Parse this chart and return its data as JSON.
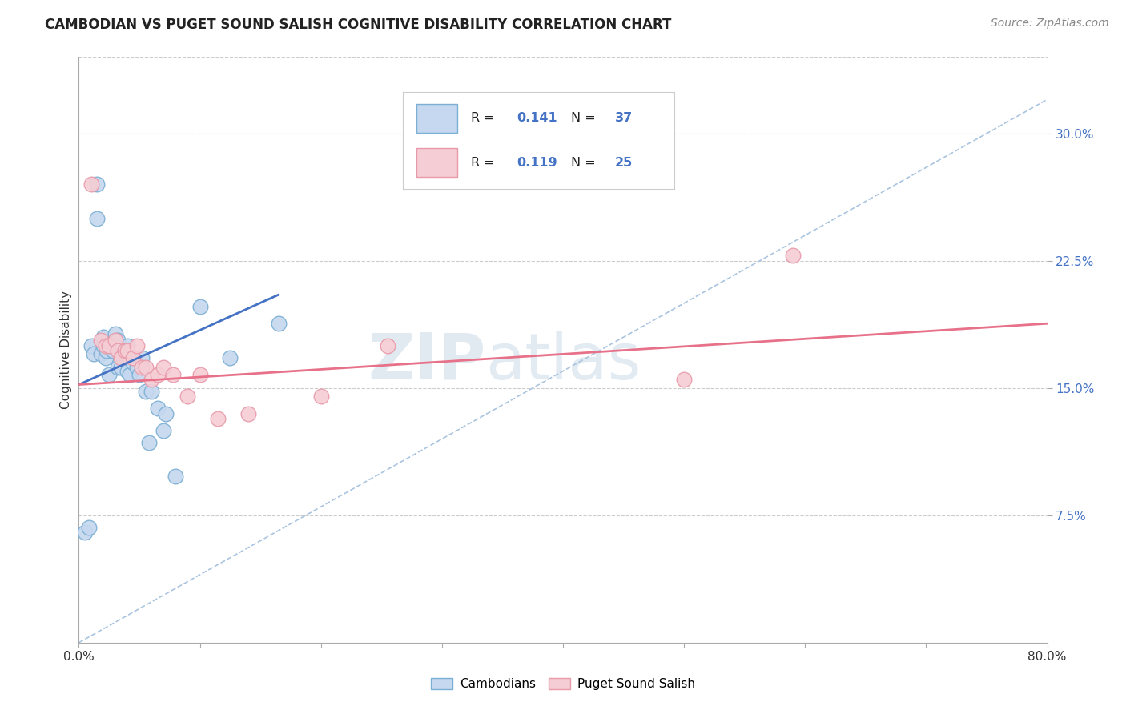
{
  "title": "CAMBODIAN VS PUGET SOUND SALISH COGNITIVE DISABILITY CORRELATION CHART",
  "source": "Source: ZipAtlas.com",
  "ylabel": "Cognitive Disability",
  "xlim": [
    0.0,
    0.8
  ],
  "ylim": [
    0.0,
    0.345
  ],
  "xticks": [
    0.0,
    0.1,
    0.2,
    0.3,
    0.4,
    0.5,
    0.6,
    0.7,
    0.8
  ],
  "yticks": [
    0.075,
    0.15,
    0.225,
    0.3
  ],
  "grid_color": "#cccccc",
  "background_color": "#ffffff",
  "watermark_zip": "ZIP",
  "watermark_atlas": "atlas",
  "cambodian_color": "#c5d8ef",
  "cambodian_edge": "#7bafd4",
  "salish_color": "#f5cdd4",
  "salish_edge": "#e89aaa",
  "cambodian_x": [
    0.005,
    0.008,
    0.01,
    0.012,
    0.015,
    0.015,
    0.018,
    0.02,
    0.02,
    0.022,
    0.023,
    0.025,
    0.025,
    0.028,
    0.03,
    0.03,
    0.032,
    0.032,
    0.035,
    0.038,
    0.04,
    0.04,
    0.042,
    0.045,
    0.048,
    0.05,
    0.052,
    0.055,
    0.058,
    0.06,
    0.065,
    0.07,
    0.072,
    0.08,
    0.1,
    0.125,
    0.165
  ],
  "cambodian_y": [
    0.065,
    0.068,
    0.175,
    0.17,
    0.25,
    0.27,
    0.17,
    0.175,
    0.18,
    0.168,
    0.172,
    0.158,
    0.175,
    0.172,
    0.175,
    0.182,
    0.162,
    0.178,
    0.162,
    0.172,
    0.16,
    0.175,
    0.158,
    0.165,
    0.162,
    0.158,
    0.168,
    0.148,
    0.118,
    0.148,
    0.138,
    0.125,
    0.135,
    0.098,
    0.198,
    0.168,
    0.188
  ],
  "salish_x": [
    0.01,
    0.018,
    0.022,
    0.025,
    0.03,
    0.032,
    0.035,
    0.038,
    0.04,
    0.045,
    0.048,
    0.052,
    0.055,
    0.06,
    0.065,
    0.07,
    0.078,
    0.09,
    0.1,
    0.115,
    0.14,
    0.2,
    0.255,
    0.5,
    0.59
  ],
  "salish_y": [
    0.27,
    0.178,
    0.175,
    0.175,
    0.178,
    0.172,
    0.168,
    0.172,
    0.172,
    0.168,
    0.175,
    0.162,
    0.162,
    0.155,
    0.158,
    0.162,
    0.158,
    0.145,
    0.158,
    0.132,
    0.135,
    0.145,
    0.175,
    0.155,
    0.228
  ],
  "blue_line_x": [
    0.0,
    0.165
  ],
  "blue_line_y": [
    0.152,
    0.205
  ],
  "pink_line_x": [
    0.0,
    0.8
  ],
  "pink_line_y": [
    0.152,
    0.188
  ],
  "dashed_line_x": [
    0.0,
    0.8
  ],
  "dashed_line_y": [
    0.0,
    0.32
  ],
  "blue_line_color": "#4472c4",
  "pink_line_color": "#e8718a",
  "dashed_line_color": "#aac4e0",
  "title_color": "#222222",
  "source_color": "#888888",
  "axis_color": "#333333",
  "tick_color": "#4472c4",
  "legend_box_color": "#dddddd"
}
